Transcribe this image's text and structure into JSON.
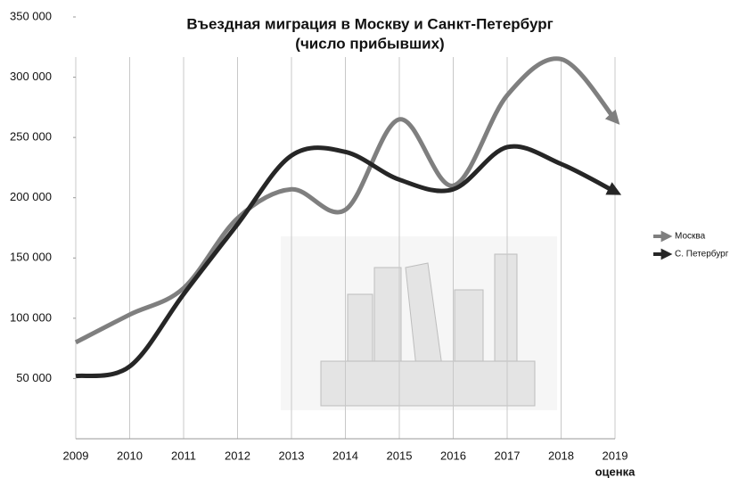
{
  "chart_data": {
    "type": "line",
    "title": "Въездная миграция в Москву и Санкт-Петербург",
    "subtitle": "(число прибывших)",
    "annotation": "оценка",
    "x": [
      2009,
      2010,
      2011,
      2012,
      2013,
      2014,
      2015,
      2016,
      2017,
      2018,
      2019
    ],
    "series": [
      {
        "name": "Москва",
        "color": "#7f7f7f",
        "values": [
          80000,
          103000,
          125000,
          183000,
          207000,
          190000,
          265000,
          210000,
          285000,
          315000,
          265000
        ]
      },
      {
        "name": "С. Петербург",
        "color": "#262626",
        "values": [
          52000,
          60000,
          120000,
          178000,
          235000,
          238000,
          215000,
          207000,
          242000,
          228000,
          205000
        ]
      }
    ],
    "xlim": [
      2009,
      2019
    ],
    "xticks": [
      2009,
      2010,
      2011,
      2012,
      2013,
      2014,
      2015,
      2016,
      2017,
      2018,
      2019
    ],
    "ylim": [
      0,
      350000
    ],
    "yticks": [
      {
        "value": 50000,
        "label": "50 000"
      },
      {
        "value": 100000,
        "label": "100 000"
      },
      {
        "value": 150000,
        "label": "150 000"
      },
      {
        "value": 200000,
        "label": "200 000"
      },
      {
        "value": 250000,
        "label": "250 000"
      },
      {
        "value": 300000,
        "label": "300 000"
      },
      {
        "value": 350000,
        "label": "350 000"
      }
    ],
    "grid": "x",
    "legend": "right"
  }
}
